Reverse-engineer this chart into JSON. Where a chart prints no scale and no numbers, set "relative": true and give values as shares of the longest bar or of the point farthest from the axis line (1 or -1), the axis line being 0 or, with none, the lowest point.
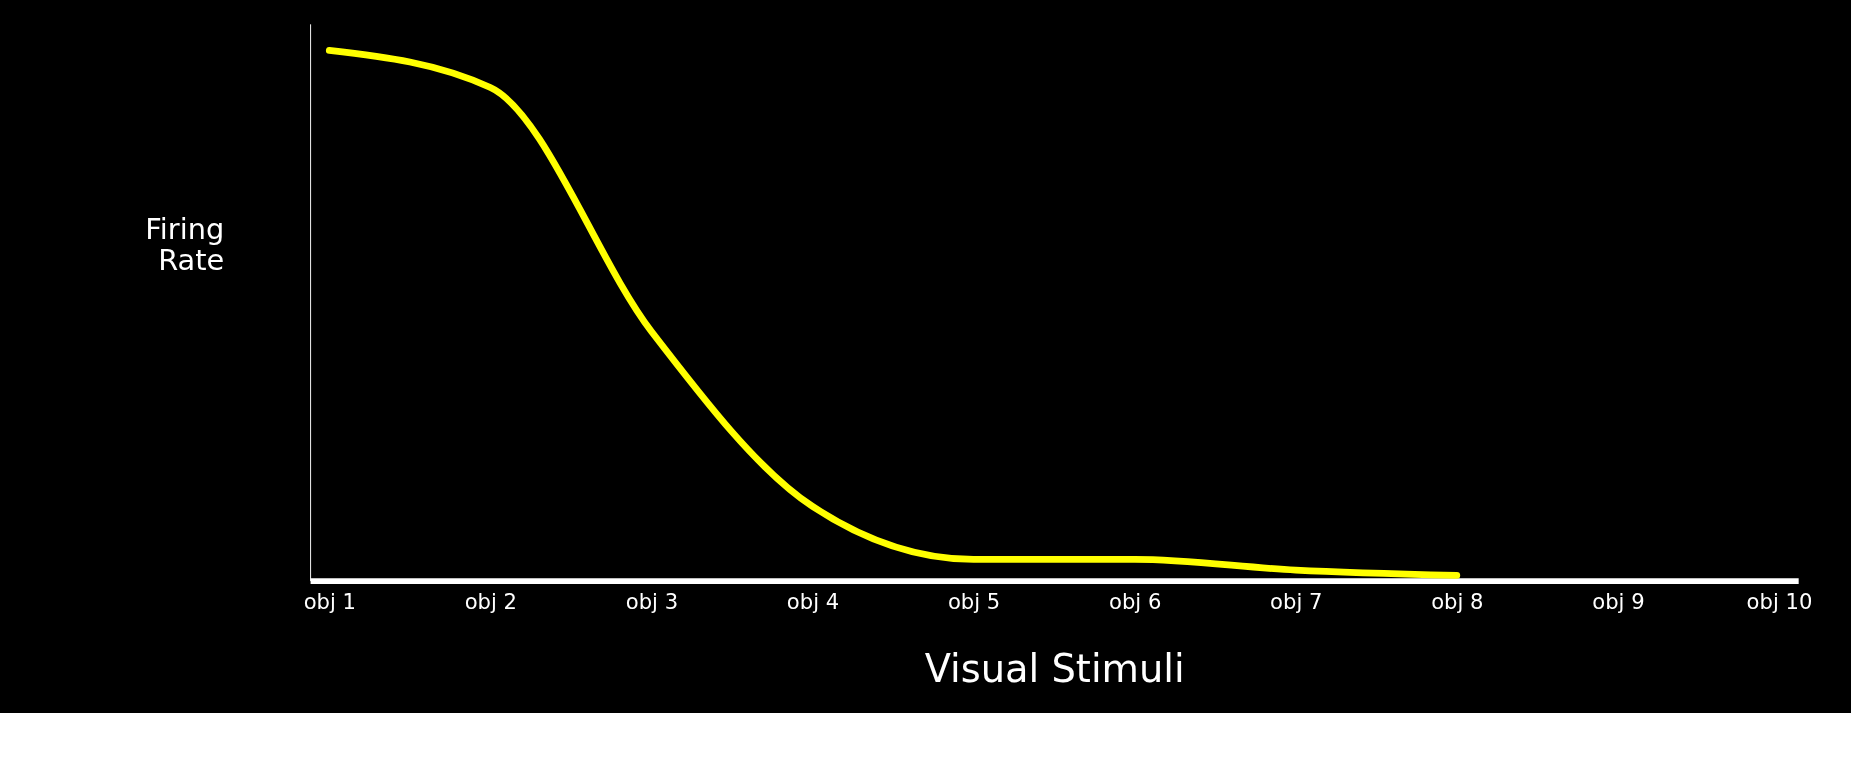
{
  "chart_data": {
    "type": "line",
    "relative": true,
    "xlabel": "Visual Stimuli",
    "ylabel": "Firing Rate",
    "categories": [
      "obj 1",
      "obj 2",
      "obj 3",
      "obj 4",
      "obj 5",
      "obj 6",
      "obj 7",
      "obj 8",
      "obj 9",
      "obj 10"
    ],
    "series": [
      {
        "color": "#ffff00",
        "values": [
          1.0,
          0.93,
          0.47,
          0.14,
          0.04,
          0.04,
          0.02,
          0.01,
          null,
          null
        ]
      }
    ],
    "grid": false,
    "line_style": "solid"
  }
}
